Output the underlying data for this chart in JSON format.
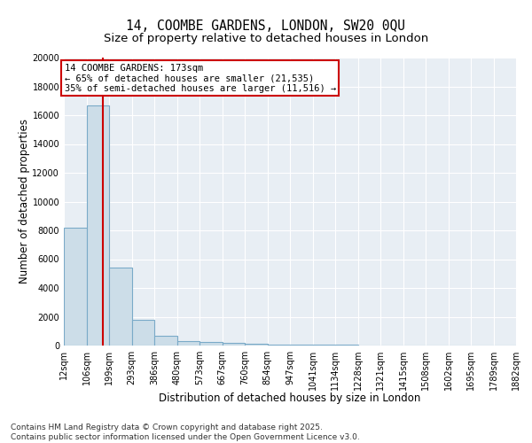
{
  "title_line1": "14, COOMBE GARDENS, LONDON, SW20 0QU",
  "title_line2": "Size of property relative to detached houses in London",
  "xlabel": "Distribution of detached houses by size in London",
  "ylabel": "Number of detached properties",
  "bar_color": "#ccdde8",
  "bar_edge_color": "#7aaac8",
  "background_color": "#e8eef4",
  "grid_color": "#ffffff",
  "bin_edges": [
    12,
    106,
    199,
    293,
    386,
    480,
    573,
    667,
    760,
    854,
    947,
    1041,
    1134,
    1228,
    1321,
    1415,
    1508,
    1602,
    1695,
    1789,
    1882
  ],
  "bin_labels": [
    "12sqm",
    "106sqm",
    "199sqm",
    "293sqm",
    "386sqm",
    "480sqm",
    "573sqm",
    "667sqm",
    "760sqm",
    "854sqm",
    "947sqm",
    "1041sqm",
    "1134sqm",
    "1228sqm",
    "1321sqm",
    "1415sqm",
    "1508sqm",
    "1602sqm",
    "1695sqm",
    "1789sqm",
    "1882sqm"
  ],
  "bar_heights": [
    8200,
    16700,
    5400,
    1800,
    650,
    320,
    220,
    160,
    120,
    80,
    60,
    45,
    35,
    30,
    25,
    20,
    15,
    10,
    8,
    5
  ],
  "ylim": [
    0,
    20000
  ],
  "yticks": [
    0,
    2000,
    4000,
    6000,
    8000,
    10000,
    12000,
    14000,
    16000,
    18000,
    20000
  ],
  "property_size": 173,
  "red_line_color": "#cc0000",
  "annotation_line1": "14 COOMBE GARDENS: 173sqm",
  "annotation_line2": "← 65% of detached houses are smaller (21,535)",
  "annotation_line3": "35% of semi-detached houses are larger (11,516) →",
  "annotation_box_color": "#cc0000",
  "footer_line1": "Contains HM Land Registry data © Crown copyright and database right 2025.",
  "footer_line2": "Contains public sector information licensed under the Open Government Licence v3.0.",
  "title_fontsize": 10.5,
  "subtitle_fontsize": 9.5,
  "axis_label_fontsize": 8.5,
  "tick_fontsize": 7,
  "annotation_fontsize": 7.5,
  "footer_fontsize": 6.5
}
